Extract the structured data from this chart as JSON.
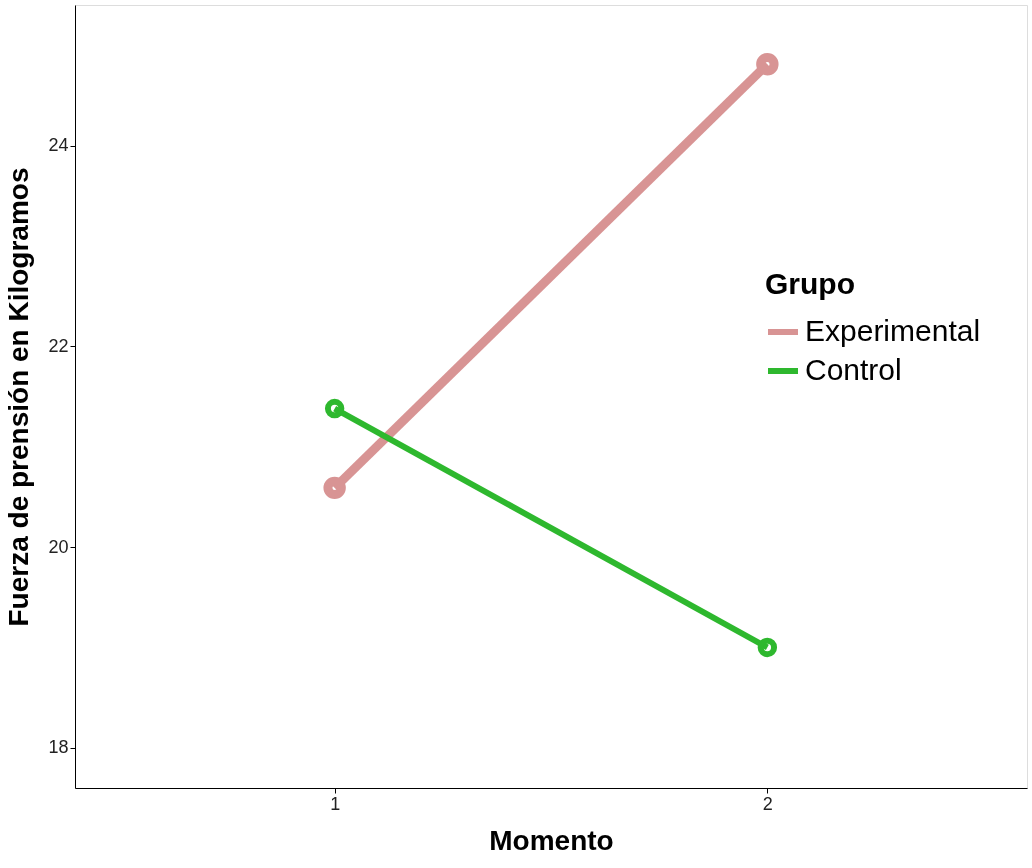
{
  "chart_data": {
    "type": "line",
    "xlabel": "Momento",
    "ylabel": "Fuerza de prensión en Kilogramos",
    "legend_title": "Grupo",
    "x": [
      1,
      2
    ],
    "xlim": [
      0.4,
      2.6
    ],
    "xticks": [
      1,
      2
    ],
    "ylim": [
      17.6,
      25.4
    ],
    "yticks": [
      18,
      20,
      22,
      24
    ],
    "series": [
      {
        "name": "Experimental",
        "color": "#d89494",
        "values": [
          20.59,
          24.81
        ]
      },
      {
        "name": "Control",
        "color": "#2eb82e",
        "values": [
          21.38,
          19.0
        ]
      }
    ],
    "marker": "circle",
    "line_style": "solid",
    "grid": false,
    "legend": "right"
  }
}
